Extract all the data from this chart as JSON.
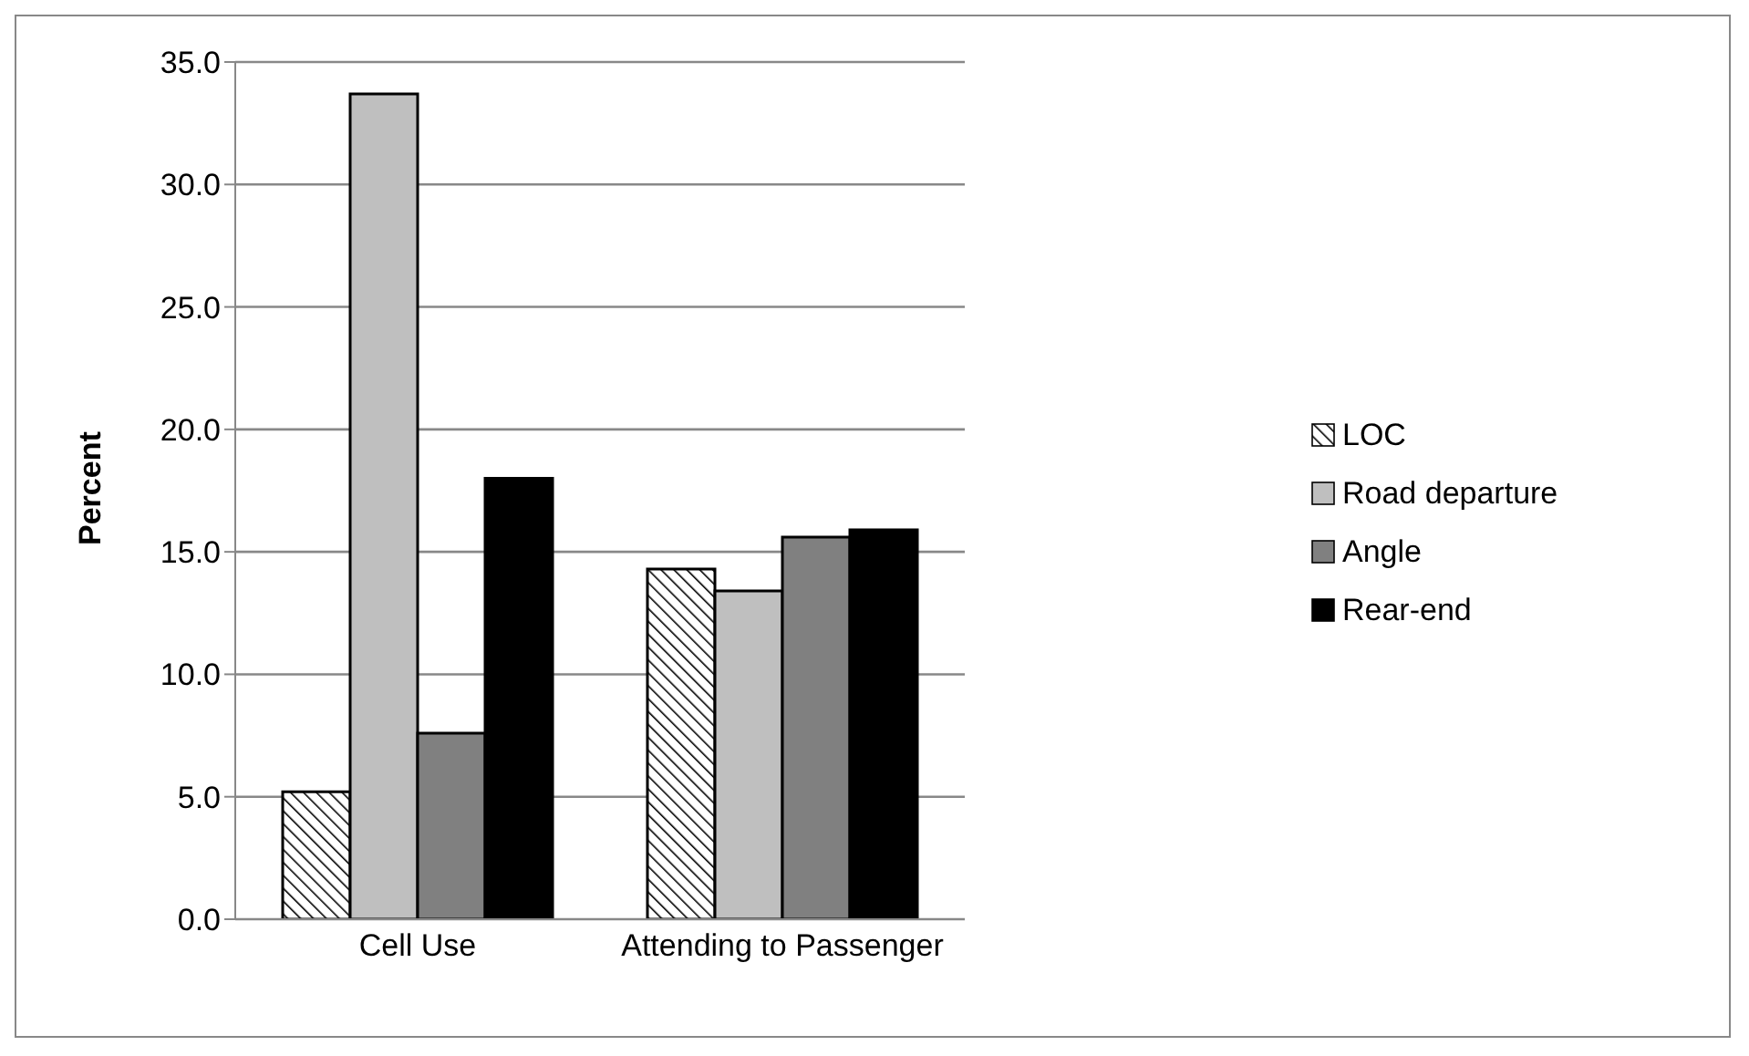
{
  "chart_data": {
    "type": "bar",
    "ylabel": "Percent",
    "categories": [
      "Cell Use",
      "Attending to Passenger"
    ],
    "series": [
      {
        "name": "LOC",
        "color": "#000000",
        "values": [
          5.2,
          14.3
        ]
      },
      {
        "name": "Road departure",
        "color": "#bfbfbf",
        "values": [
          33.7,
          13.4
        ]
      },
      {
        "name": "Angle",
        "color": "#808080",
        "values": [
          7.6,
          15.6
        ]
      },
      {
        "name": "Rear-end",
        "color": "#000000",
        "values": [
          18.0,
          15.9
        ]
      }
    ],
    "ylim": [
      0,
      35
    ],
    "yticks": [
      {
        "value": 0,
        "label": "0.0"
      },
      {
        "value": 5,
        "label": "5.0"
      },
      {
        "value": 10,
        "label": "10.0"
      },
      {
        "value": 15,
        "label": "15.0"
      },
      {
        "value": 20,
        "label": "20.0"
      },
      {
        "value": 25,
        "label": "25.0"
      },
      {
        "value": 30,
        "label": "30.0"
      },
      {
        "value": 35,
        "label": "35.0"
      }
    ],
    "grid": "y",
    "legend": "right"
  }
}
